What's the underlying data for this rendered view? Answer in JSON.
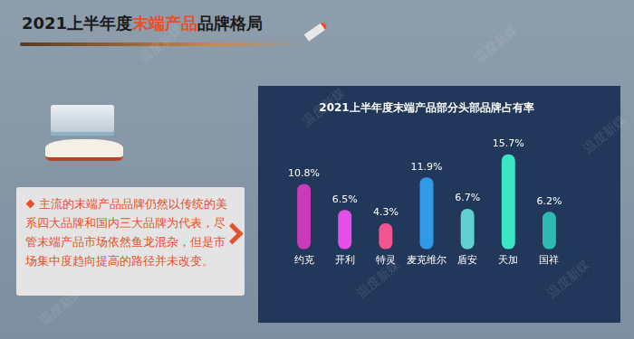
{
  "slide": {
    "title": [
      {
        "text": "2021上半年度"
      },
      {
        "text": "末端产品",
        "highlight": true
      },
      {
        "text": "品牌格局"
      }
    ],
    "note": "主流的末端产品品牌仍然以传统的美系四大品牌和国内三大品牌为代表，尽管末端产品市场依然鱼龙混杂，但是市场集中度趋向提高的路径并未改变。",
    "watermark": "温度新媒"
  },
  "chart_data": {
    "type": "bar",
    "title": "2021上半年度末端产品部分头部品牌占有率",
    "categories": [
      "约克",
      "开利",
      "特灵",
      "麦克维尔",
      "盾安",
      "天加",
      "国祥"
    ],
    "values": [
      10.8,
      6.5,
      4.3,
      11.9,
      6.7,
      15.7,
      6.2
    ],
    "value_labels": [
      "10.8%",
      "6.5%",
      "4.3%",
      "11.9%",
      "6.7%",
      "15.7%",
      "6.2%"
    ],
    "colors": [
      "#c93bb8",
      "#e44fe8",
      "#f2558f",
      "#2f9be8",
      "#5fd0cf",
      "#3ae6c6",
      "#2cbab2"
    ],
    "ylim": [
      0,
      18
    ],
    "grid": false,
    "data_labels": true,
    "tick_labels": "x"
  }
}
